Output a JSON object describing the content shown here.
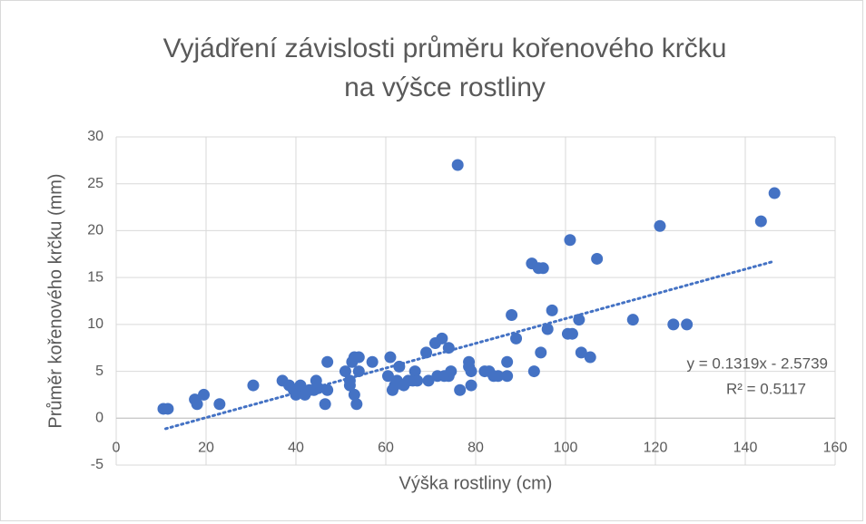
{
  "chart_data": {
    "type": "scatter",
    "title": [
      "Vyjádření závislosti průměru kořenového krčku",
      "na výšce rostliny"
    ],
    "x_label": "Výška rostliny (cm)",
    "y_label": "Průměr kořenového krčku (mm)",
    "xlim": [
      0,
      160
    ],
    "xticks": [
      0,
      20,
      40,
      60,
      80,
      100,
      120,
      140,
      160
    ],
    "ylim": [
      -5,
      30
    ],
    "yticks": [
      -5,
      0,
      5,
      10,
      15,
      20,
      25,
      30
    ],
    "grid": true,
    "series": [
      {
        "color": "#4472c4",
        "x": [
          10.5,
          11.5,
          17.5,
          18,
          19.5,
          23,
          30.5,
          37,
          38.5,
          39.5,
          40,
          41,
          42,
          43,
          44,
          44.5,
          45,
          46.5,
          47,
          47,
          51,
          52,
          52,
          52.5,
          53,
          53,
          53.5,
          54,
          54,
          57,
          60.5,
          61,
          61.5,
          62,
          62.5,
          63,
          64,
          65,
          66,
          66.5,
          67,
          69,
          69.5,
          71,
          71.5,
          72.5,
          73,
          74,
          74,
          74.5,
          76,
          76.5,
          78.5,
          78.5,
          79,
          79,
          82,
          83,
          84,
          85,
          87,
          87,
          88,
          89,
          92.5,
          93,
          94,
          94.5,
          95,
          96,
          97,
          100.5,
          101,
          101.5,
          103,
          103.5,
          105.5,
          107,
          115,
          121,
          124,
          127,
          143.5,
          146.5
        ],
        "values": [
          1,
          1,
          2,
          1.5,
          2.5,
          1.5,
          3.5,
          4,
          3.5,
          3,
          2.5,
          3.5,
          2.5,
          3,
          3,
          4,
          3.2,
          1.5,
          6,
          3,
          5,
          4,
          3.5,
          6,
          6.5,
          2.5,
          1.5,
          5,
          6.5,
          6,
          4.5,
          6.5,
          3,
          3.5,
          4,
          5.5,
          3.5,
          4,
          4,
          5,
          4,
          7,
          4,
          8,
          4.5,
          8.5,
          4.5,
          7.5,
          4.5,
          5,
          27,
          3,
          6,
          5.5,
          3.5,
          5,
          5,
          5,
          4.5,
          4.5,
          4.5,
          6,
          11,
          8.5,
          16.5,
          5,
          16,
          7,
          16,
          9.5,
          11.5,
          9,
          19,
          9,
          10.5,
          7,
          6.5,
          17,
          10.5,
          20.5,
          10,
          10,
          21,
          24
        ]
      }
    ],
    "trendline": {
      "slope": 0.1319,
      "intercept": -2.5739,
      "x_range": [
        11,
        146
      ],
      "equation": "y = 0.1319x - 2.5739",
      "r_squared": "R² = 0.5117"
    }
  }
}
